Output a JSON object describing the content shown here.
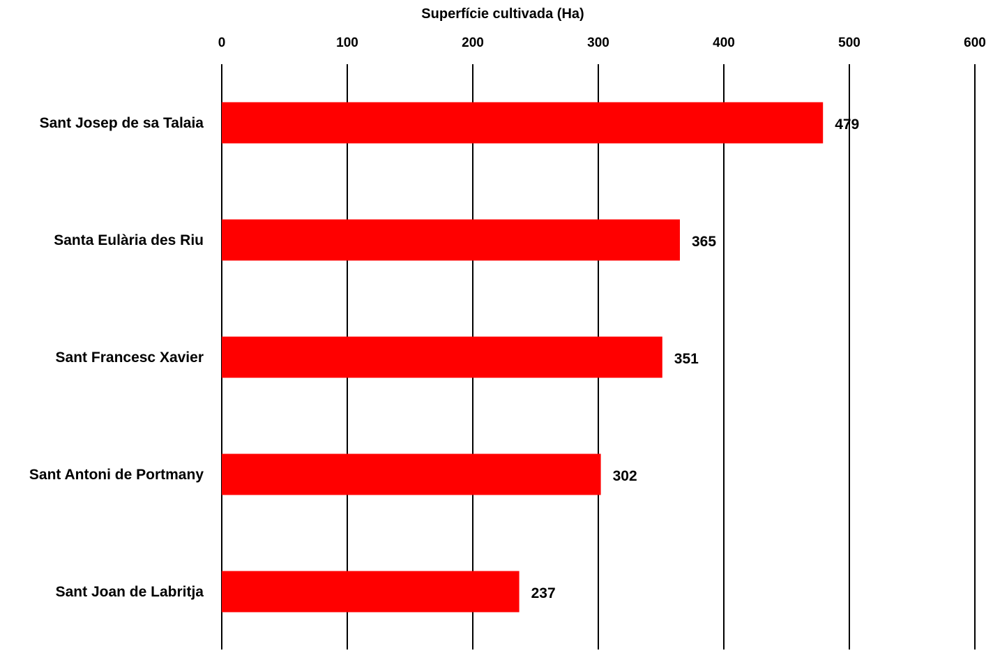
{
  "chart_data": {
    "type": "bar",
    "orientation": "horizontal",
    "title": "",
    "xlabel": "Superfície cultivada (Ha)",
    "ylabel": "",
    "categories": [
      "Sant Josep de sa Talaia",
      "Santa Eulària des Riu",
      "Sant Francesc Xavier",
      "Sant Antoni de Portmany",
      "Sant Joan de Labritja"
    ],
    "values": [
      479,
      365,
      351,
      302,
      237
    ],
    "data_labels": [
      "479",
      "365",
      "351",
      "302",
      "237"
    ],
    "xlim": [
      0,
      600
    ],
    "x_ticks": [
      0,
      100,
      200,
      300,
      400,
      500,
      600
    ],
    "x_tick_labels": [
      "0",
      "100",
      "200",
      "300",
      "400",
      "500",
      "600"
    ],
    "x_axis_position": "top",
    "grid": true,
    "legend": "none",
    "bar_color": "#ff0000",
    "grid_color": "#000000"
  }
}
